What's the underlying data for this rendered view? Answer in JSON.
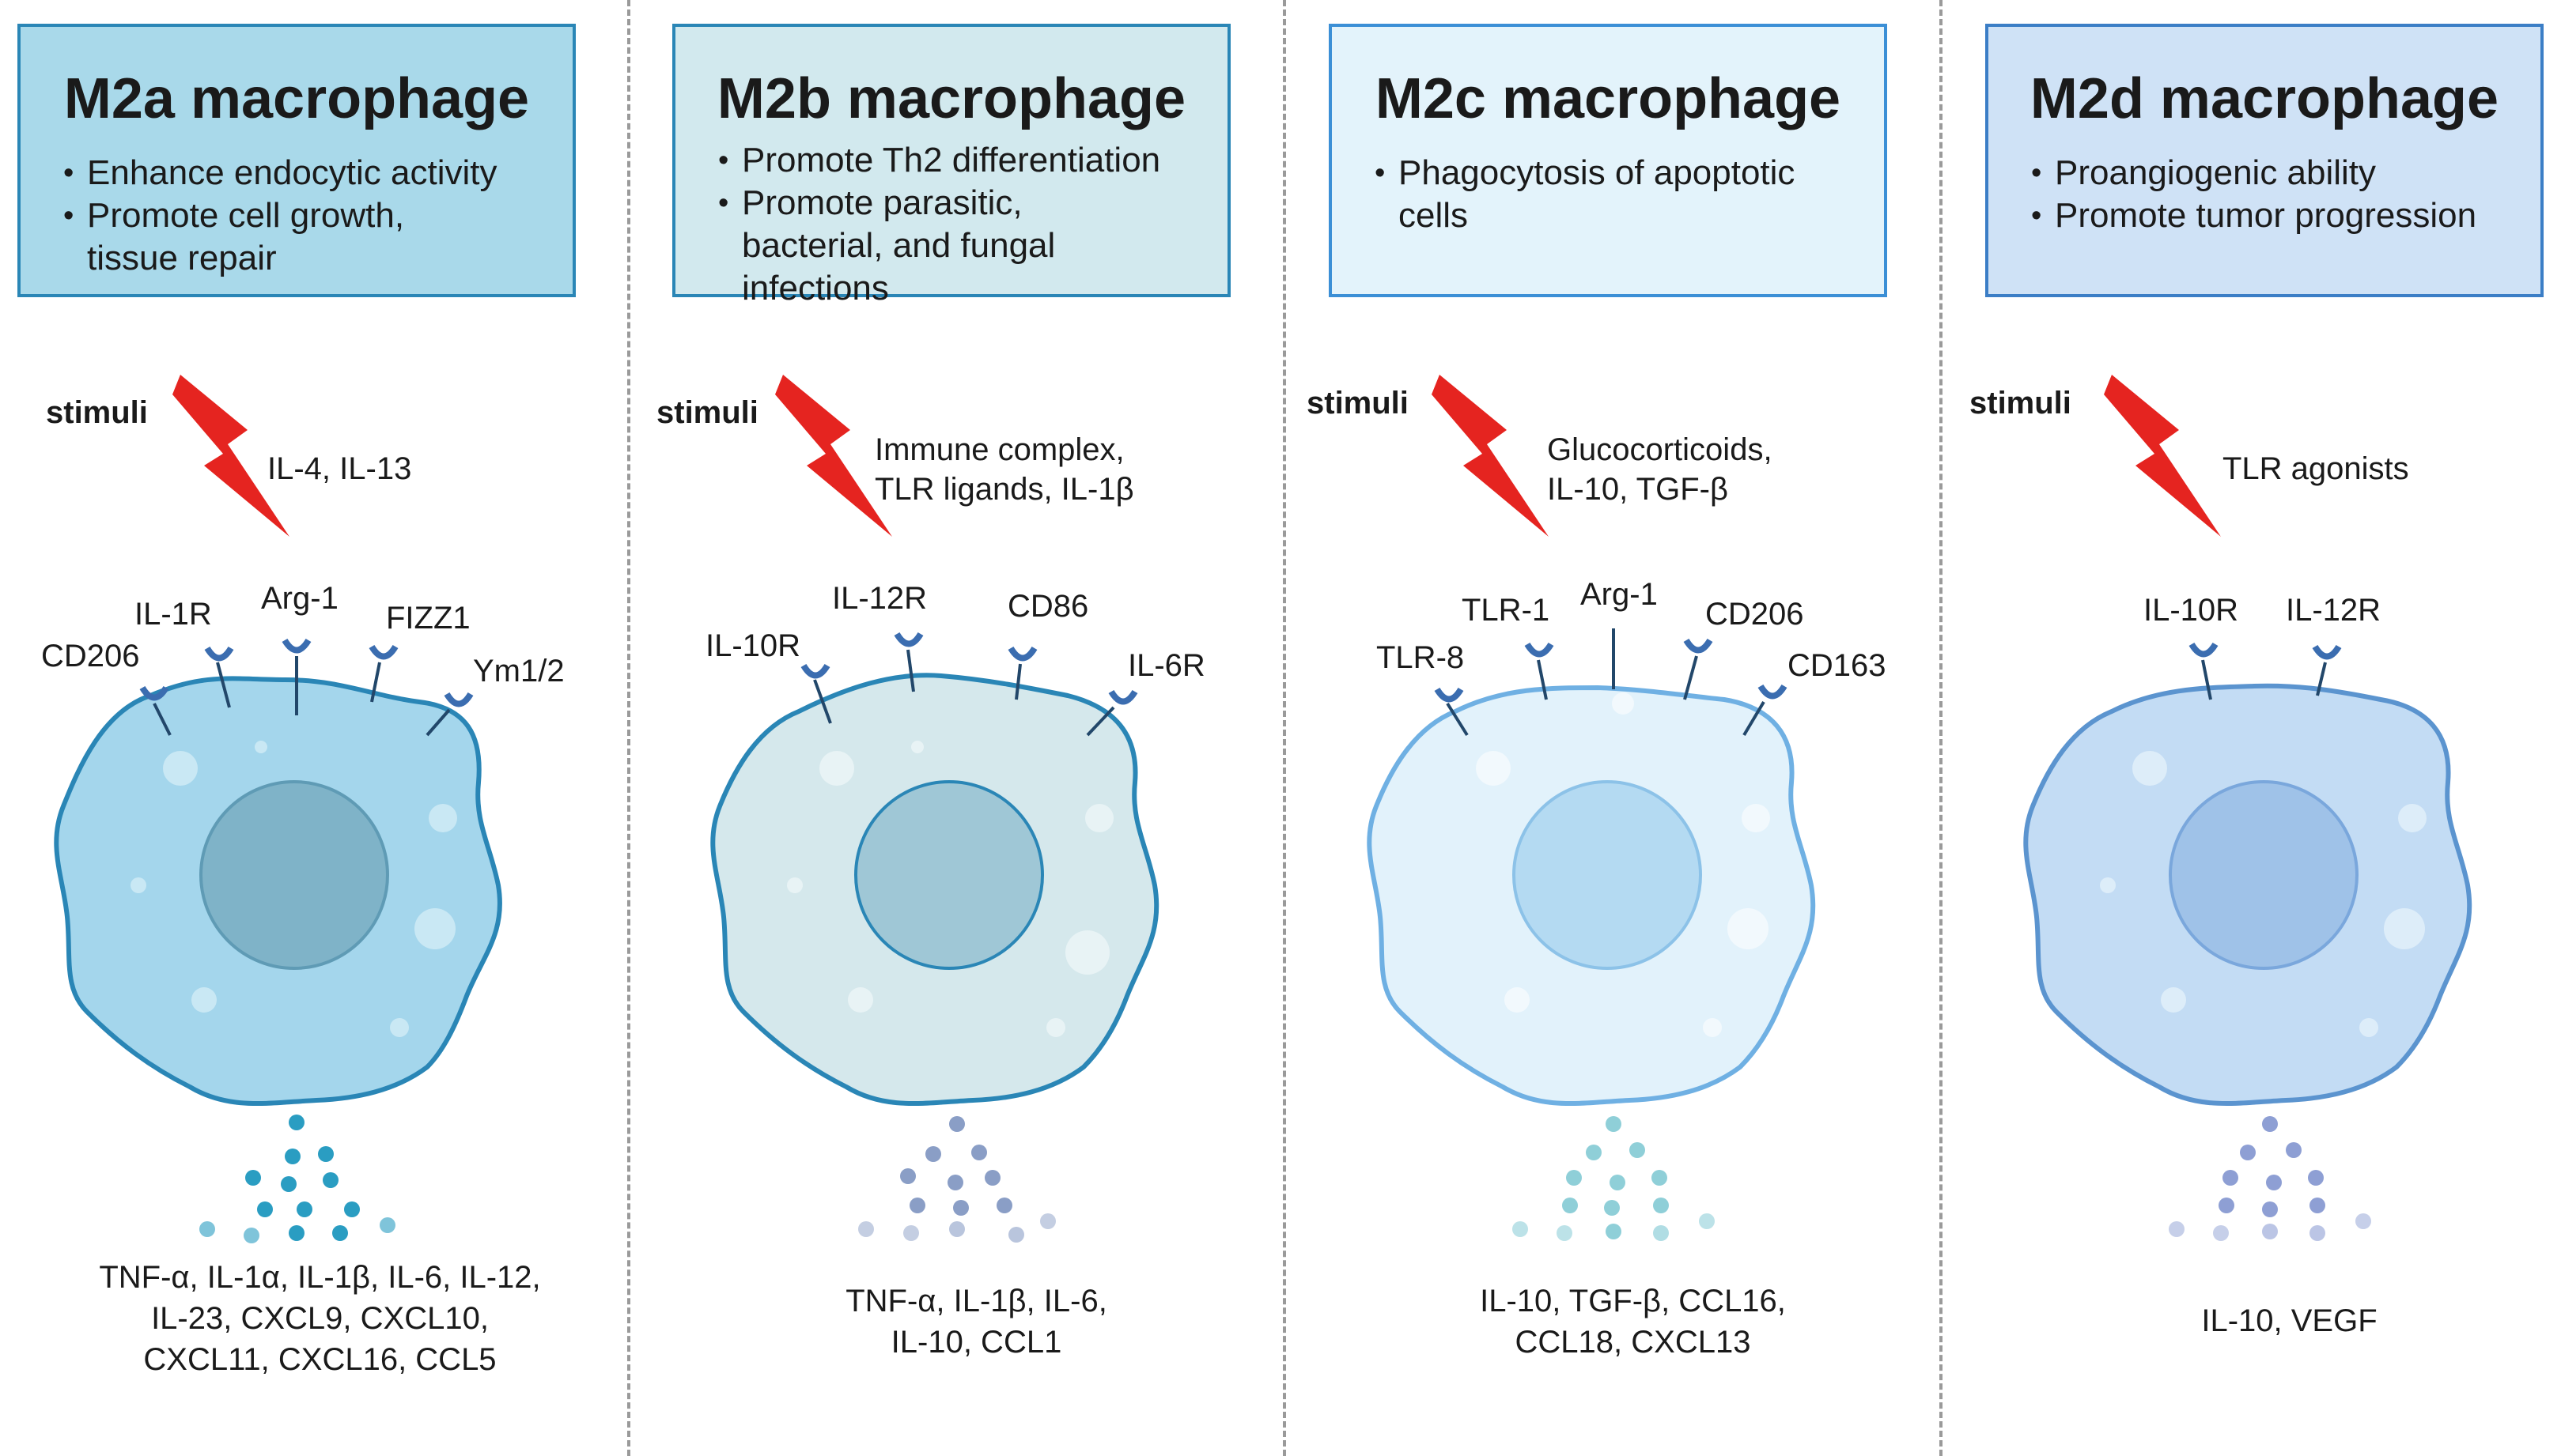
{
  "panels": [
    {
      "title": "M2a macrophage",
      "bullets": [
        "Enhance endocytic activity",
        "Promote cell growth,",
        "tissue  repair"
      ],
      "stimuli_label": "stimuli",
      "stimuli": [
        "IL-4, IL-13"
      ],
      "receptors": [
        "CD206",
        "IL-1R",
        "Arg-1",
        "FIZZ1",
        "Ym1/2"
      ],
      "secreted": [
        "TNF-α, IL-1α, IL-1β, IL-6, IL-12,",
        "IL-23, CXCL9, CXCL10,",
        "CXCL11, CXCL16, CCL5"
      ],
      "box_color": "#a9d9ea",
      "cell_color": "#a4d6ec",
      "nucleus_color": "#7fb3c8",
      "dot_color": "#2a9dc2"
    },
    {
      "title": "M2b macrophage",
      "bullets": [
        "Promote Th2 differentiation",
        "Promote parasitic,",
        "bacterial, and fungal",
        "infections"
      ],
      "stimuli_label": "stimuli",
      "stimuli": [
        "Immune complex,",
        "TLR ligands, IL-1β"
      ],
      "receptors": [
        "IL-10R",
        "IL-12R",
        "CD86",
        "IL-6R"
      ],
      "secreted": [
        "TNF-α, IL-1β, IL-6,",
        "IL-10, CCL1"
      ],
      "box_color": "#d2e9ee",
      "cell_color": "#d5e8ec",
      "nucleus_color": "#9fc7d6",
      "dot_color": "#8a9ec6"
    },
    {
      "title": "M2c macrophage",
      "bullets": [
        "Phagocytosis of apoptotic",
        "cells"
      ],
      "stimuli_label": "stimuli",
      "stimuli": [
        "Glucocorticoids,",
        "IL-10, TGF-β"
      ],
      "receptors": [
        "TLR-8",
        "TLR-1",
        "Arg-1",
        "CD206",
        "CD163"
      ],
      "secreted": [
        "IL-10, TGF-β, CCL16,",
        "CCL18, CXCL13"
      ],
      "box_color": "#e3f3fb",
      "cell_color": "#e2f2fb",
      "nucleus_color": "#b4daf2",
      "dot_color": "#8fcfd8"
    },
    {
      "title": "M2d macrophage",
      "bullets": [
        "Proangiogenic ability",
        "Promote tumor progression"
      ],
      "stimuli_label": "stimuli",
      "stimuli": [
        "TLR agonists"
      ],
      "receptors": [
        "IL-10R",
        "IL-12R"
      ],
      "secreted": [
        "IL-10, VEGF"
      ],
      "box_color": "#cfe2f6",
      "cell_color": "#c3dcf4",
      "nucleus_color": "#9fc2e8",
      "dot_color": "#8e9fd4"
    }
  ]
}
